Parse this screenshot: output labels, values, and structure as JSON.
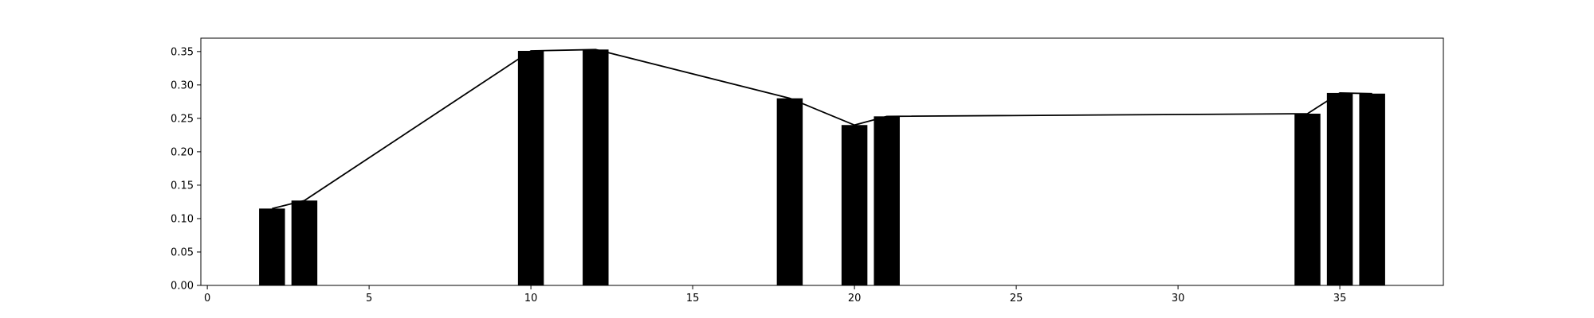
{
  "chart_data": {
    "type": "bar",
    "title": "",
    "xlabel": "",
    "ylabel": "",
    "xlim": [
      -0.2,
      38.2
    ],
    "ylim": [
      0.0,
      0.37
    ],
    "grid": false,
    "x_ticks": [
      0,
      5,
      10,
      15,
      20,
      25,
      30,
      35
    ],
    "y_ticks": [
      0.0,
      0.05,
      0.1,
      0.15,
      0.2,
      0.25,
      0.3,
      0.35
    ],
    "x_tick_labels": [
      "0",
      "5",
      "10",
      "15",
      "20",
      "25",
      "30",
      "35"
    ],
    "y_tick_labels": [
      "0.00",
      "0.05",
      "0.10",
      "0.15",
      "0.20",
      "0.25",
      "0.30",
      "0.35"
    ],
    "bar_width": 0.8,
    "x": [
      2,
      3,
      10,
      12,
      18,
      20,
      21,
      34,
      35,
      36
    ],
    "values": [
      0.115,
      0.127,
      0.351,
      0.353,
      0.28,
      0.24,
      0.253,
      0.257,
      0.288,
      0.287
    ],
    "line": {
      "x": [
        2,
        3,
        10,
        12,
        18,
        20,
        21,
        34,
        35,
        36
      ],
      "y": [
        0.115,
        0.127,
        0.351,
        0.353,
        0.28,
        0.24,
        0.253,
        0.257,
        0.288,
        0.287
      ]
    },
    "colors": {
      "bars": "#000000",
      "line": "#000000",
      "axes": "#000000"
    }
  }
}
